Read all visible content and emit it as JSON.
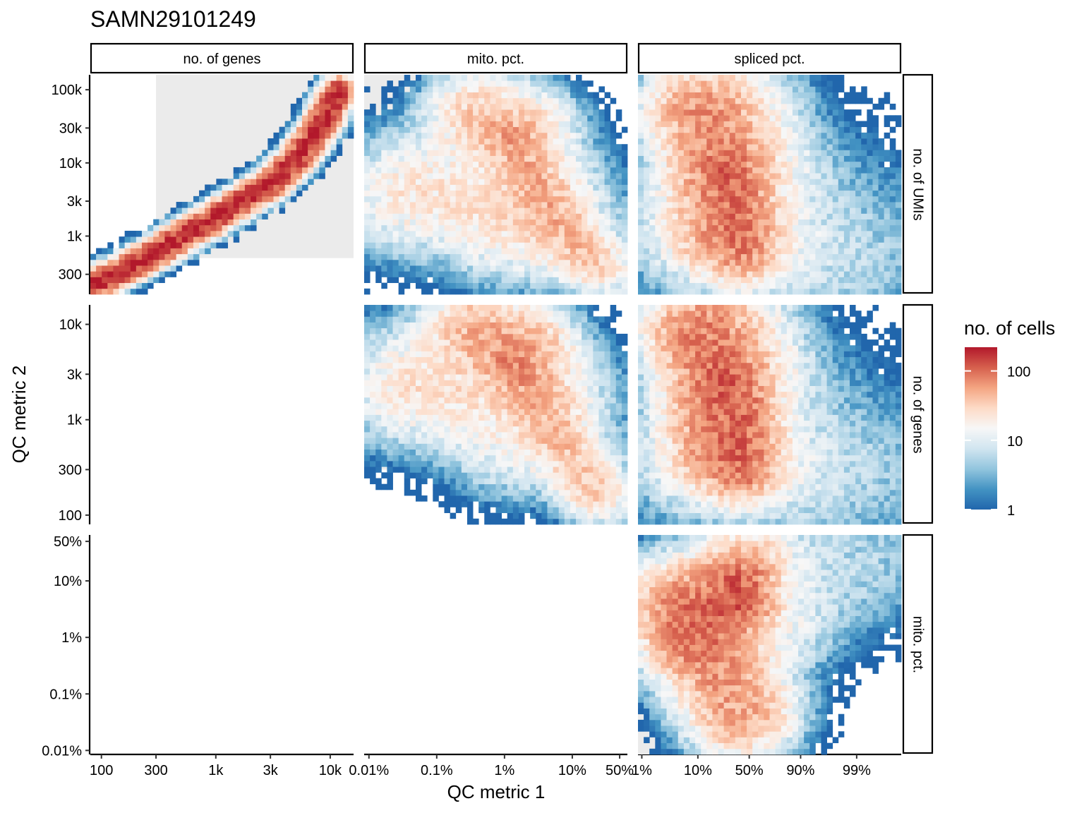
{
  "title": "SAMN29101249",
  "xlabel": "QC metric 1",
  "ylabel": "QC metric 2",
  "legend": {
    "title": "no. of cells",
    "ticks": [
      {
        "value": 1,
        "label": "1"
      },
      {
        "value": 10,
        "label": "10"
      },
      {
        "value": 100,
        "label": "100"
      }
    ],
    "max": 220,
    "colors": [
      "#2166ac",
      "#4393c3",
      "#92c5de",
      "#d1e5f0",
      "#f7f7f7",
      "#fddbc7",
      "#f4a582",
      "#d6604d",
      "#b2182b"
    ]
  },
  "columns": [
    {
      "label": "no. of genes",
      "scale": "log10",
      "range": [
        80,
        16000
      ],
      "ticks": [
        {
          "value": 100,
          "label": "100"
        },
        {
          "value": 300,
          "label": "300"
        },
        {
          "value": 1000,
          "label": "1k"
        },
        {
          "value": 3000,
          "label": "3k"
        },
        {
          "value": 10000,
          "label": "10k"
        }
      ]
    },
    {
      "label": "mito. pct.",
      "scale": "log10",
      "range": [
        0.0085,
        65
      ],
      "ticks": [
        {
          "value": 0.01,
          "label": "0.01%"
        },
        {
          "value": 0.1,
          "label": "0.1%"
        },
        {
          "value": 1,
          "label": "1%"
        },
        {
          "value": 10,
          "label": "10%"
        },
        {
          "value": 50,
          "label": "50%"
        }
      ]
    },
    {
      "label": "spliced pct.",
      "scale": "logit",
      "range": [
        0.0085,
        0.9985
      ],
      "ticks": [
        {
          "value": 0.01,
          "label": "1%"
        },
        {
          "value": 0.1,
          "label": "10%"
        },
        {
          "value": 0.5,
          "label": "50%"
        },
        {
          "value": 0.9,
          "label": "90%"
        },
        {
          "value": 0.99,
          "label": "99%"
        }
      ]
    }
  ],
  "rows": [
    {
      "label": "no. of UMIs",
      "scale": "log10",
      "range": [
        160,
        160000
      ],
      "ticks": [
        {
          "value": 300,
          "label": "300"
        },
        {
          "value": 1000,
          "label": "1k"
        },
        {
          "value": 3000,
          "label": "3k"
        },
        {
          "value": 10000,
          "label": "10k"
        },
        {
          "value": 30000,
          "label": "30k"
        },
        {
          "value": 100000,
          "label": "100k"
        }
      ]
    },
    {
      "label": "no. of genes",
      "scale": "log10",
      "range": [
        80,
        16000
      ],
      "ticks": [
        {
          "value": 100,
          "label": "100"
        },
        {
          "value": 300,
          "label": "300"
        },
        {
          "value": 1000,
          "label": "1k"
        },
        {
          "value": 3000,
          "label": "3k"
        },
        {
          "value": 10000,
          "label": "10k"
        }
      ]
    },
    {
      "label": "mito. pct.",
      "scale": "log10",
      "range": [
        0.0085,
        65
      ],
      "ticks": [
        {
          "value": 0.01,
          "label": "0.01%"
        },
        {
          "value": 0.1,
          "label": "0.1%"
        },
        {
          "value": 1,
          "label": "1%"
        },
        {
          "value": 10,
          "label": "10%"
        },
        {
          "value": 50,
          "label": "50%"
        }
      ]
    }
  ],
  "chart_data": {
    "type": "heatmap",
    "layout": "facet-grid 3x3, lower-left empty",
    "fill_scale": "log10",
    "grid": false,
    "legend_placement": "right",
    "panels": [
      {
        "row": 0,
        "col": 0,
        "x_metric": "no. of genes",
        "y_metric": "no. of UMIs",
        "pass_region": {
          "x": [
            300,
            16000
          ],
          "y": [
            500,
            160000
          ]
        },
        "features": [
          {
            "kind": "curve",
            "points": [
              [
                90,
                230
              ],
              [
                150,
                330
              ],
              [
                300,
                600
              ],
              [
                600,
                1150
              ],
              [
                1000,
                1800
              ],
              [
                2000,
                3600
              ],
              [
                3000,
                5200
              ],
              [
                5000,
                11000
              ],
              [
                8000,
                30000
              ],
              [
                10000,
                60000
              ],
              [
                12000,
                95000
              ]
            ],
            "peak": 200,
            "spread": 0.035
          }
        ]
      },
      {
        "row": 0,
        "col": 1,
        "x_metric": "mito. pct.",
        "y_metric": "no. of UMIs",
        "pass_region": {
          "x": [
            0.0085,
            10
          ],
          "y": [
            500,
            160000
          ]
        },
        "features": [
          {
            "kind": "curve",
            "points": [
              [
                0.4,
                50000
              ],
              [
                1,
                40000
              ],
              [
                2,
                30000
              ]
            ],
            "peak": 35,
            "spread": 0.11
          },
          {
            "kind": "curve",
            "points": [
              [
                0.05,
                4000
              ],
              [
                0.2,
                3500
              ],
              [
                1,
                3200
              ],
              [
                3,
                2800
              ]
            ],
            "peak": 24,
            "spread": 0.16
          },
          {
            "kind": "curve",
            "points": [
              [
                1,
                20000
              ],
              [
                2,
                10000
              ],
              [
                4,
                3500
              ],
              [
                8,
                1200
              ],
              [
                15,
                600
              ],
              [
                20,
                450
              ]
            ],
            "peak": 28,
            "spread": 0.07
          },
          {
            "kind": "curve",
            "points": [
              [
                1,
                800
              ],
              [
                5,
                700
              ],
              [
                20,
                500
              ],
              [
                45,
                350
              ]
            ],
            "peak": 9,
            "spread": 0.12
          }
        ]
      },
      {
        "row": 0,
        "col": 2,
        "x_metric": "spliced pct.",
        "y_metric": "no. of UMIs",
        "pass_region": {
          "x": [
            0.0085,
            0.75
          ],
          "y": [
            500,
            160000
          ]
        },
        "features": [
          {
            "kind": "curve",
            "points": [
              [
                0.1,
                50000
              ],
              [
                0.15,
                25000
              ],
              [
                0.2,
                8000
              ],
              [
                0.22,
                3000
              ],
              [
                0.25,
                1200
              ]
            ],
            "peak": 60,
            "spread": 0.12
          },
          {
            "kind": "curve",
            "points": [
              [
                0.3,
                7000
              ],
              [
                0.4,
                3500
              ],
              [
                0.45,
                1500
              ],
              [
                0.45,
                500
              ]
            ],
            "peak": 35,
            "spread": 0.07
          },
          {
            "kind": "curve",
            "points": [
              [
                0.4,
                50000
              ],
              [
                0.5,
                12000
              ]
            ],
            "peak": 20,
            "spread": 0.14
          },
          {
            "kind": "curve",
            "points": [
              [
                0.08,
                1000
              ],
              [
                0.3,
                800
              ],
              [
                0.7,
                700
              ]
            ],
            "peak": 8,
            "spread": 0.18
          },
          {
            "kind": "curve",
            "points": [
              [
                0.9,
                2000
              ],
              [
                0.97,
                900
              ],
              [
                0.99,
                600
              ]
            ],
            "peak": 5,
            "spread": 0.25
          }
        ]
      },
      {
        "row": 1,
        "col": 1,
        "x_metric": "mito. pct.",
        "y_metric": "no. of genes",
        "pass_region": {
          "x": [
            0.0085,
            10
          ],
          "y": [
            300,
            16000
          ]
        },
        "features": [
          {
            "kind": "curve",
            "points": [
              [
                0.4,
                9500
              ],
              [
                1,
                7500
              ],
              [
                2,
                6000
              ]
            ],
            "peak": 45,
            "spread": 0.11
          },
          {
            "kind": "curve",
            "points": [
              [
                0.05,
                2300
              ],
              [
                0.2,
                2000
              ],
              [
                1,
                1800
              ],
              [
                3,
                1600
              ]
            ],
            "peak": 25,
            "spread": 0.16
          },
          {
            "kind": "curve",
            "points": [
              [
                1,
                4500
              ],
              [
                2,
                2500
              ],
              [
                4,
                1200
              ],
              [
                8,
                500
              ],
              [
                15,
                250
              ],
              [
                20,
                180
              ]
            ],
            "peak": 28,
            "spread": 0.07
          },
          {
            "kind": "curve",
            "points": [
              [
                1,
                400
              ],
              [
                5,
                350
              ],
              [
                20,
                250
              ],
              [
                45,
                150
              ]
            ],
            "peak": 8,
            "spread": 0.12
          }
        ]
      },
      {
        "row": 1,
        "col": 2,
        "x_metric": "spliced pct.",
        "y_metric": "no. of genes",
        "pass_region": {
          "x": [
            0.0085,
            0.75
          ],
          "y": [
            300,
            16000
          ]
        },
        "features": [
          {
            "kind": "curve",
            "points": [
              [
                0.1,
                8000
              ],
              [
                0.15,
                4500
              ],
              [
                0.2,
                2000
              ],
              [
                0.22,
                900
              ],
              [
                0.25,
                500
              ]
            ],
            "peak": 75,
            "spread": 0.12
          },
          {
            "kind": "curve",
            "points": [
              [
                0.3,
                2500
              ],
              [
                0.4,
                1500
              ],
              [
                0.45,
                700
              ],
              [
                0.45,
                250
              ]
            ],
            "peak": 40,
            "spread": 0.07
          },
          {
            "kind": "curve",
            "points": [
              [
                0.4,
                9000
              ],
              [
                0.5,
                4000
              ]
            ],
            "peak": 20,
            "spread": 0.14
          },
          {
            "kind": "curve",
            "points": [
              [
                0.08,
                350
              ],
              [
                0.3,
                300
              ],
              [
                0.7,
                280
              ]
            ],
            "peak": 8,
            "spread": 0.18
          },
          {
            "kind": "curve",
            "points": [
              [
                0.9,
                700
              ],
              [
                0.97,
                400
              ],
              [
                0.99,
                300
              ]
            ],
            "peak": 5,
            "spread": 0.25
          }
        ]
      },
      {
        "row": 2,
        "col": 2,
        "x_metric": "spliced pct.",
        "y_metric": "mito. pct.",
        "pass_region": {
          "x": [
            0.0085,
            0.75
          ],
          "y": [
            0.0085,
            10
          ]
        },
        "features": [
          {
            "kind": "curve",
            "points": [
              [
                0.05,
                4
              ],
              [
                0.08,
                1.5
              ],
              [
                0.12,
                0.6
              ],
              [
                0.2,
                0.25
              ],
              [
                0.3,
                0.1
              ],
              [
                0.4,
                0.05
              ]
            ],
            "peak": 60,
            "spread": 0.12
          },
          {
            "kind": "curve",
            "points": [
              [
                0.08,
                1.5
              ],
              [
                0.2,
                5
              ],
              [
                0.35,
                12
              ],
              [
                0.45,
                20
              ]
            ],
            "peak": 40,
            "spread": 0.1
          },
          {
            "kind": "curve",
            "points": [
              [
                0.4,
                8
              ],
              [
                0.42,
                4
              ]
            ],
            "peak": 70,
            "spread": 0.07
          },
          {
            "kind": "curve",
            "points": [
              [
                0.3,
                1
              ],
              [
                0.5,
                1.5
              ],
              [
                0.7,
                2
              ]
            ],
            "peak": 15,
            "spread": 0.15
          },
          {
            "kind": "curve",
            "points": [
              [
                0.6,
                50
              ],
              [
                0.9,
                40
              ],
              [
                0.99,
                20
              ]
            ],
            "peak": 6,
            "spread": 0.18
          }
        ]
      }
    ]
  }
}
